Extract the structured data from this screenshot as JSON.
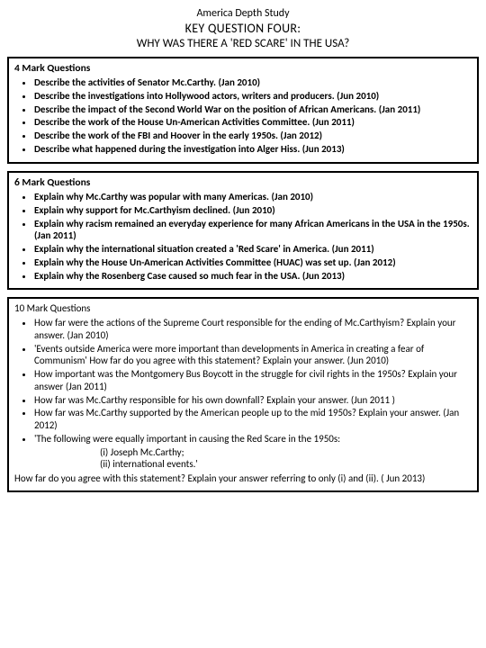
{
  "header": {
    "pretitle": "America Depth Study",
    "title": "KEY QUESTION FOUR:",
    "subtitle": "WHY WAS THERE A 'RED SCARE' IN THE USA?"
  },
  "box4": {
    "heading": "4 Mark Questions",
    "items": [
      "Describe the activities of Senator Mc.Carthy. (Jan 2010)",
      "Describe the investigations into Hollywood actors, writers and producers. (Jun 2010)",
      "Describe the impact of the Second World War on the position of African Americans. (Jan 2011)",
      "Describe the work of the House Un-American Activities Committee. (Jun 2011)",
      "Describe the work of the FBI and Hoover in the early 1950s. (Jan 2012)",
      "Describe what happened during the investigation into Alger Hiss. (Jun 2013)"
    ]
  },
  "box6": {
    "heading": "6 Mark Questions",
    "items": [
      "Explain why Mc.Carthy was popular with many Americas. (Jan 2010)",
      "Explain why support for Mc.Carthyism declined. (Jun 2010)",
      "Explain why racism remained an everyday experience for many African Americans in the USA in the 1950s. (Jan 2011)",
      "Explain why the international situation created a 'Red Scare' in America. (Jun 2011)",
      "Explain why the House Un-American Activities Committee (HUAC) was set up. (Jan 2012)",
      "Explain why the Rosenberg Case caused so much fear in the USA. (Jun 2013)"
    ]
  },
  "box10": {
    "heading": "10 Mark Questions",
    "items": [
      "How far were the actions of the Supreme Court responsible for the ending of Mc.Carthyism? Explain your answer. (Jan 2010)",
      "'Events outside America were more important than developments in America in creating a fear of Communism' How far do you agree with this statement? Explain your answer. (Jun 2010)",
      "How important was the Montgomery Bus Boycott in the struggle for civil rights in the 1950s? Explain your answer (Jan 2011)",
      "How far was Mc.Carthy responsible for his own downfall? Explain your answer. (Jun 2011 )",
      "How far was Mc.Carthy supported by the American people up to the mid 1950s? Explain your answer. (Jan 2012)",
      "'The following were equally important in causing the Red Scare in the 1950s:"
    ],
    "sub1": "(i) Joseph Mc.Carthy;",
    "sub2": "(ii) international events.'",
    "final": "How far do you agree with this statement? Explain your answer referring to only (i) and (ii). ( Jun 2013)"
  }
}
